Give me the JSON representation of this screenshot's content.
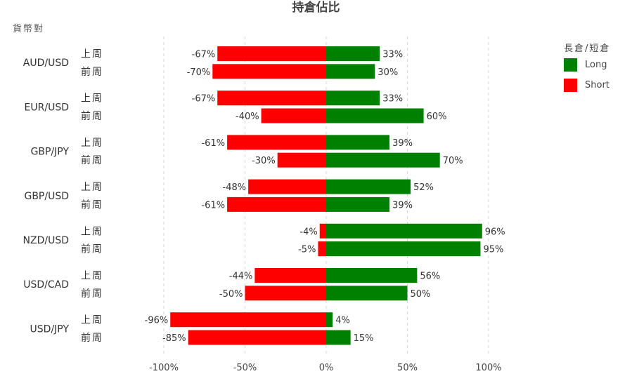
{
  "chart_data": {
    "type": "bar",
    "orientation": "horizontal-diverging",
    "title": "持倉佔比",
    "ylabel": "貨幣對",
    "legend_title": "長倉/短倉",
    "legend_position": "right",
    "xlim": [
      -100,
      100
    ],
    "x_ticks": [
      -100,
      -50,
      0,
      50,
      100
    ],
    "x_tick_labels": [
      "-100%",
      "-50%",
      "0%",
      "50%",
      "100%"
    ],
    "grid": "vertical dashed",
    "series": [
      {
        "name": "Long",
        "color": "#008000"
      },
      {
        "name": "Short",
        "color": "#ff0000"
      }
    ],
    "groups": [
      {
        "pair": "AUD/USD",
        "rows": [
          {
            "period": "上周",
            "long": 33,
            "short": -67
          },
          {
            "period": "前周",
            "long": 30,
            "short": -70
          }
        ]
      },
      {
        "pair": "EUR/USD",
        "rows": [
          {
            "period": "上周",
            "long": 33,
            "short": -67
          },
          {
            "period": "前周",
            "long": 60,
            "short": -40
          }
        ]
      },
      {
        "pair": "GBP/JPY",
        "rows": [
          {
            "period": "上周",
            "long": 39,
            "short": -61
          },
          {
            "period": "前周",
            "long": 70,
            "short": -30
          }
        ]
      },
      {
        "pair": "GBP/USD",
        "rows": [
          {
            "period": "上周",
            "long": 52,
            "short": -48
          },
          {
            "period": "前周",
            "long": 39,
            "short": -61
          }
        ]
      },
      {
        "pair": "NZD/USD",
        "rows": [
          {
            "period": "上周",
            "long": 96,
            "short": -4
          },
          {
            "period": "前周",
            "long": 95,
            "short": -5
          }
        ]
      },
      {
        "pair": "USD/CAD",
        "rows": [
          {
            "period": "上周",
            "long": 56,
            "short": -44
          },
          {
            "period": "前周",
            "long": 50,
            "short": -50
          }
        ]
      },
      {
        "pair": "USD/JPY",
        "rows": [
          {
            "period": "上周",
            "long": 4,
            "short": -96
          },
          {
            "period": "前周",
            "long": 15,
            "short": -85
          }
        ]
      }
    ]
  }
}
